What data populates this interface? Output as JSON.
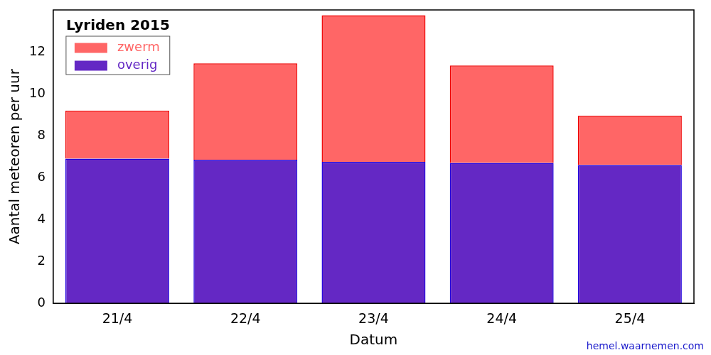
{
  "chart_data": {
    "type": "bar",
    "title": "Lyriden 2015",
    "x_label": "Datum",
    "y_label": "Aantal meteoren per uur",
    "source": "hemel.waarnemen.com",
    "categories": [
      "21/4",
      "22/4",
      "23/4",
      "24/4",
      "25/4"
    ],
    "series": [
      {
        "name": "zwerm",
        "color": "#ff6666",
        "values": [
          2.3,
          4.6,
          7.0,
          4.65,
          2.35
        ]
      },
      {
        "name": "overig",
        "color": "#6428c4",
        "values": [
          6.9,
          6.85,
          6.75,
          6.7,
          6.6
        ]
      }
    ],
    "stacked": true,
    "ylim": [
      0,
      14
    ],
    "yticks": [
      0,
      2,
      4,
      6,
      8,
      10,
      12
    ],
    "grid": false,
    "legend": "upper left"
  }
}
